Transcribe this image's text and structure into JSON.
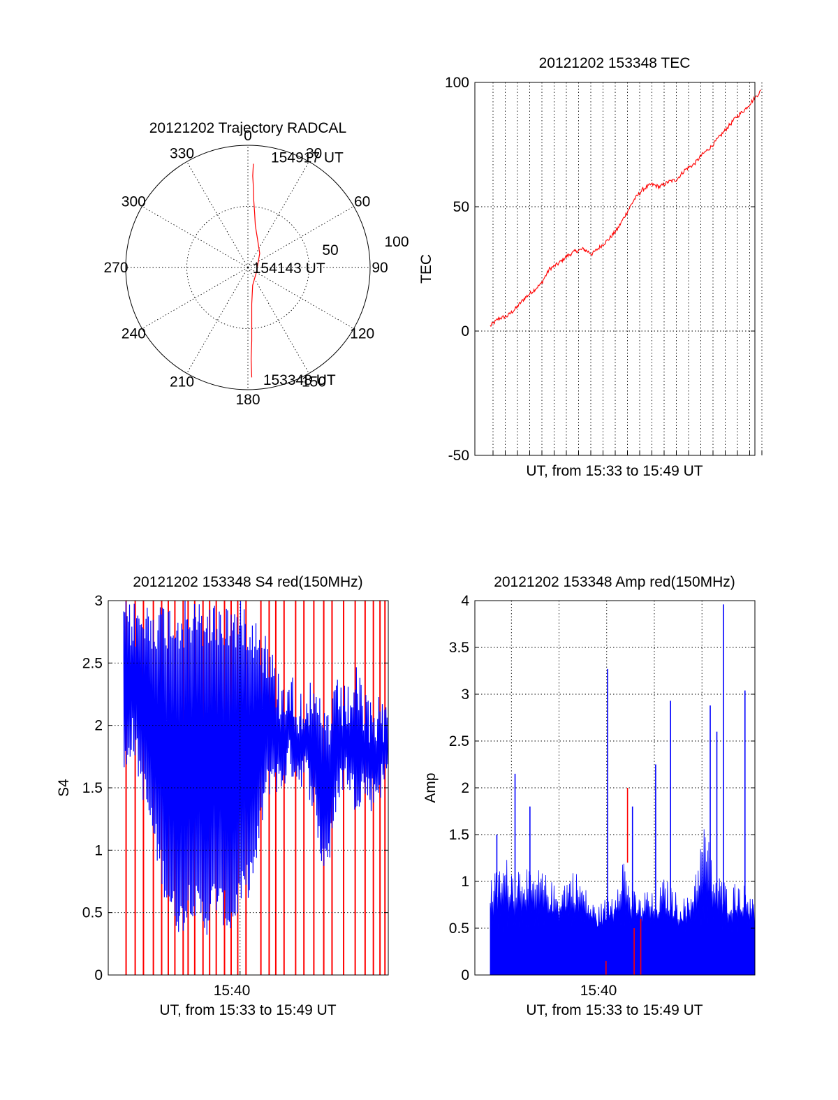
{
  "chart_data": [
    {
      "type": "polar-trajectory",
      "title": "20121202 Trajectory RADCAL",
      "angle_labels": [
        "0",
        "30",
        "60",
        "90",
        "120",
        "150",
        "180",
        "210",
        "240",
        "270",
        "300",
        "330"
      ],
      "radial_labels": [
        "50",
        "100"
      ],
      "radial_max": 100,
      "series": [
        {
          "color": "#ff0000",
          "points_az_dist": [
            [
              3,
              85
            ],
            [
              3,
              75
            ],
            [
              4,
              65
            ],
            [
              5,
              55
            ],
            [
              7,
              45
            ],
            [
              10,
              35
            ],
            [
              17,
              26
            ],
            [
              40,
              15
            ],
            [
              120,
              8
            ],
            [
              165,
              15
            ],
            [
              174,
              30
            ],
            [
              176,
              45
            ],
            [
              177,
              60
            ],
            [
              178,
              75
            ],
            [
              178,
              90
            ]
          ]
        }
      ],
      "annotations": [
        {
          "text": "154917 UT",
          "az": 10,
          "dist": 92
        },
        {
          "text": "154143 UT",
          "az": 90,
          "dist": 1
        },
        {
          "text": "153348 UT",
          "az": 174,
          "dist": 92
        }
      ]
    },
    {
      "type": "line",
      "title": "20121202 153348 TEC",
      "xlabel": "UT, from 15:33 to 15:49 UT",
      "ylabel": "TEC",
      "ylim": [
        -50,
        100
      ],
      "yticks": [
        "-50",
        "0",
        "50",
        "100"
      ],
      "xlim_minutes": [
        15.6,
        16.0
      ],
      "vertical_grid_minutes": [
        15.85,
        16.55,
        17.25,
        17.95,
        18.65,
        19.35,
        20.05,
        20.75,
        21.45,
        22.15,
        22.85,
        23.55,
        24.25,
        24.95,
        25.65,
        26.35,
        27.05,
        27.75,
        28.45,
        29.15,
        29.85,
        30.55,
        31.25,
        31.95
      ],
      "x_minutes": [
        0,
        0.5,
        1,
        1.5,
        2,
        2.5,
        3,
        3.5,
        4,
        4.5,
        5,
        5.5,
        6,
        6.5,
        7,
        7.5,
        8,
        8.5,
        9,
        9.5,
        10,
        10.5,
        11,
        11.5,
        12,
        12.5,
        13,
        13.5,
        14,
        14.5,
        15,
        15.5,
        16
      ],
      "series": [
        {
          "color": "#ff0000",
          "values": [
            2,
            5,
            6,
            9,
            13,
            16,
            19,
            25,
            27,
            30,
            32,
            33,
            31,
            34,
            37,
            41,
            47,
            53,
            57,
            59,
            58,
            60,
            61,
            65,
            67,
            71,
            74,
            78,
            82,
            86,
            89,
            93,
            97
          ]
        }
      ]
    },
    {
      "type": "line",
      "title": "20121202 153348 S4 red(150MHz)",
      "xlabel": "UT, from 15:33 to 15:49 UT",
      "ylabel": "S4",
      "ylim": [
        0,
        3
      ],
      "yticks": [
        "0",
        "0.5",
        "1",
        "1.5",
        "2",
        "2.5",
        "3"
      ],
      "xtick_label": "15:40",
      "x_minutes": [
        0,
        0.5,
        1,
        1.5,
        2,
        2.5,
        3,
        3.5,
        4,
        4.5,
        5,
        5.5,
        6,
        6.5,
        7,
        7.5,
        8,
        8.5,
        9,
        9.5,
        10,
        10.5,
        11,
        11.5,
        12,
        12.5,
        13,
        13.5,
        14,
        14.5,
        15,
        15.5,
        16
      ],
      "series": [
        {
          "color": "#ff0000",
          "style": "spikes",
          "spike_minutes": [
            0.15,
            0.7,
            1.2,
            1.8,
            2.3,
            2.7,
            3.1,
            3.6,
            3.9,
            4.3,
            4.8,
            5.2,
            5.6,
            6.1,
            6.5,
            6.9,
            7.4,
            8.3,
            8.8,
            9.2,
            9.7,
            10.4,
            10.9,
            11.5,
            12.1,
            12.6,
            13.3,
            14.0,
            14.6,
            15.1,
            15.5,
            15.8
          ]
        },
        {
          "color": "#0000ff",
          "style": "envelope",
          "lower": [
            1.5,
            1.8,
            1.5,
            1.2,
            0.9,
            0.6,
            0.4,
            0.3,
            0.5,
            0.4,
            0.3,
            0.5,
            0.4,
            0.3,
            0.5,
            0.6,
            0.8,
            1.3,
            1.5,
            1.4,
            1.6,
            1.5,
            1.5,
            1.3,
            0.8,
            0.9,
            1.4,
            1.5,
            1.3,
            1.4,
            1.3,
            1.4,
            1.5
          ],
          "upper": [
            3,
            3,
            3,
            3,
            3,
            3,
            3,
            3,
            3,
            3,
            3,
            3,
            3,
            3,
            3,
            3,
            2.9,
            2.8,
            2.6,
            2.4,
            2.5,
            2.3,
            2.4,
            2.3,
            2.2,
            2.2,
            2.4,
            2.3,
            2.5,
            2.3,
            2.2,
            2.3,
            2.2
          ]
        }
      ]
    },
    {
      "type": "line",
      "title": "20121202 153348 Amp red(150MHz)",
      "xlabel": "UT, from 15:33 to 15:49 UT",
      "ylabel": "Amp",
      "ylim": [
        0,
        4
      ],
      "yticks": [
        "0",
        "0.5",
        "1",
        "1.5",
        "2",
        "2.5",
        "3",
        "3.5",
        "4"
      ],
      "xtick_label": "15:40",
      "x_minutes": [
        0,
        0.5,
        1,
        1.5,
        2,
        2.5,
        3,
        3.5,
        4,
        4.5,
        5,
        5.5,
        6,
        6.5,
        7,
        7.5,
        8,
        8.5,
        9,
        9.5,
        10,
        10.5,
        11,
        11.5,
        12,
        12.5,
        13,
        13.5,
        14,
        14.5,
        15,
        15.5,
        16
      ],
      "series": [
        {
          "color": "#0000ff",
          "style": "filled",
          "values": [
            1.0,
            1.1,
            1.2,
            1.1,
            1.2,
            1.0,
            1.1,
            1.0,
            0.9,
            1.0,
            1.1,
            1.0,
            0.8,
            0.7,
            0.8,
            0.9,
            1.3,
            0.9,
            0.8,
            0.9,
            0.8,
            1.0,
            0.9,
            0.8,
            0.8,
            1.2,
            1.6,
            1.1,
            1.0,
            0.9,
            1.0,
            0.9,
            1.0
          ],
          "peaks_minutes": [
            [
              7.1,
              3.27
            ],
            [
              8.6,
              1.8
            ],
            [
              10.0,
              2.25
            ],
            [
              10.9,
              2.93
            ],
            [
              13.3,
              2.88
            ],
            [
              13.7,
              2.6
            ],
            [
              14.1,
              3.96
            ],
            [
              15.4,
              3.04
            ],
            [
              0.4,
              1.5
            ],
            [
              1.5,
              2.15
            ],
            [
              2.4,
              1.8
            ]
          ]
        },
        {
          "color": "#ff0000",
          "style": "spikes",
          "peaks_minutes": [
            [
              8.3,
              2.0
            ],
            [
              7.0,
              0.15
            ],
            [
              8.7,
              0.5
            ],
            [
              9.1,
              0.6
            ]
          ]
        }
      ]
    }
  ]
}
